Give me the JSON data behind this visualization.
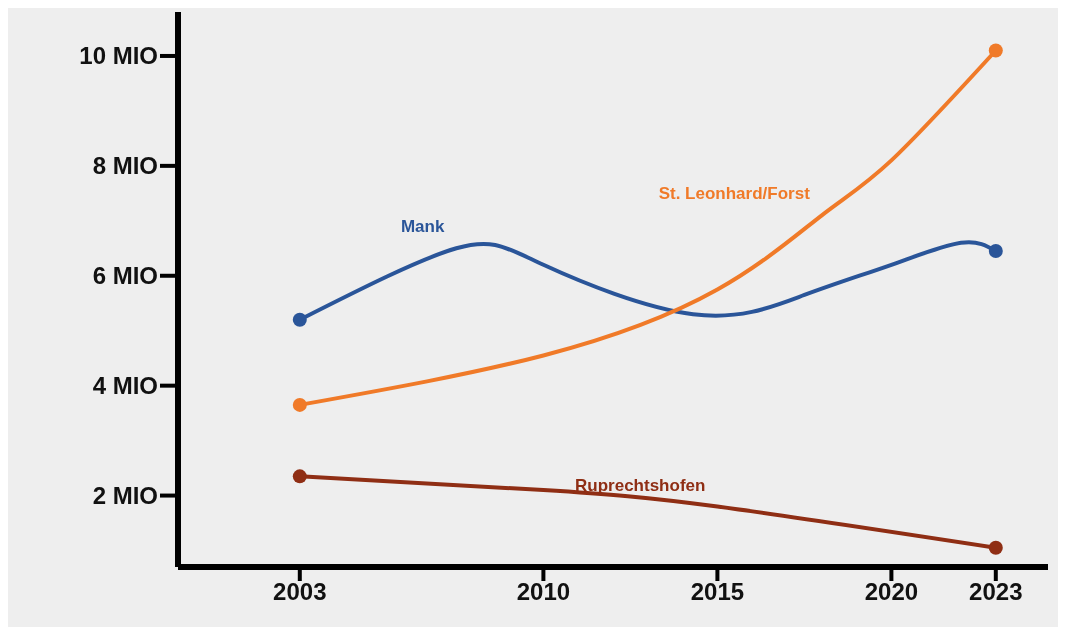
{
  "chart_data": {
    "type": "line",
    "xlim": [
      1999.5,
      2024.5
    ],
    "xticks": [
      2003,
      2010,
      2015,
      2020,
      2023
    ],
    "ylim": [
      0.7,
      10.8
    ],
    "yticks": [
      {
        "value": 2,
        "label": "2 MIO"
      },
      {
        "value": 4,
        "label": "4 MIO"
      },
      {
        "value": 6,
        "label": "6 MIO"
      },
      {
        "value": 8,
        "label": "8 MIO"
      },
      {
        "value": 10,
        "label": "10 MIO"
      }
    ],
    "grid": false,
    "legend": false,
    "marker": "circle",
    "line_style": "solid",
    "series": [
      {
        "name": "Mank",
        "color": "#2a5599",
        "marker": "none",
        "x": [
          2003,
          2007.5,
          2010,
          2014.3,
          2017.5,
          2020,
          2022,
          2023
        ],
        "values": [
          5.2,
          6.5,
          6.2,
          5.3,
          5.65,
          6.2,
          6.6,
          6.45
        ]
      },
      {
        "name": "St. Leonhard/Forst",
        "color": "#f07a28",
        "marker": "none",
        "x": [
          2003,
          2010,
          2015,
          2018,
          2020,
          2023
        ],
        "values": [
          3.65,
          4.55,
          5.75,
          7.1,
          8.1,
          10.1
        ]
      },
      {
        "name": "Ruprechtshofen",
        "color": "#8f2e14",
        "marker": "none",
        "x": [
          2003,
          2010,
          2015,
          2023
        ],
        "values": [
          2.35,
          2.1,
          1.8,
          1.05
        ]
      },
      {
        "type": "scatter",
        "color": "#2a5599",
        "x": [
          2003,
          2023
        ],
        "values": [
          5.2,
          6.45
        ]
      },
      {
        "type": "scatter",
        "color": "#f07a28",
        "x": [
          2003,
          2023
        ],
        "values": [
          3.65,
          10.1
        ]
      },
      {
        "type": "scatter",
        "color": "#8f2e14",
        "x": [
          2003,
          2023
        ],
        "values": [
          2.35,
          1.05
        ]
      }
    ]
  }
}
